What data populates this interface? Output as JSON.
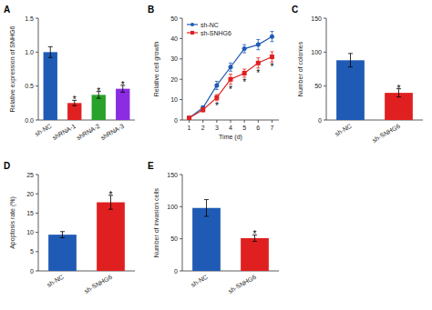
{
  "chart_data": [
    {
      "type": "bar",
      "title": "A",
      "categories": [
        "sh-NC",
        "shRNA-1",
        "shRNA-2",
        "shRNA-3"
      ],
      "values": [
        1.0,
        0.25,
        0.37,
        0.46
      ],
      "errors": [
        0.08,
        0.04,
        0.05,
        0.05
      ],
      "colors": [
        "#1f5bb5",
        "#e02020",
        "#28a228",
        "#8b2be2"
      ],
      "ylabel": "Relative expression of SNHG6",
      "ylim": [
        0,
        1.5
      ],
      "yticks": [
        {
          "value": 0,
          "label": "0.0"
        },
        0.5,
        {
          "value": 1.0,
          "label": "1.0"
        },
        1.5
      ],
      "grid": false,
      "annotations": [
        {
          "text": "*",
          "category": "shRNA-1"
        },
        {
          "text": "*",
          "category": "shRNA-2"
        },
        {
          "text": "*",
          "category": "shRNA-3"
        }
      ]
    },
    {
      "type": "line",
      "title": "B",
      "x": [
        1,
        2,
        3,
        4,
        5,
        6,
        7
      ],
      "series": [
        {
          "name": "sh-NC",
          "color": "#1f5bb5",
          "marker": "circle",
          "values": [
            1,
            6,
            17,
            26,
            35,
            37,
            41
          ],
          "errors": [
            0.3,
            1.0,
            2.0,
            2.0,
            2.0,
            2.5,
            2.5
          ]
        },
        {
          "name": "sh-SNHG6",
          "color": "#e02020",
          "marker": "square",
          "values": [
            1,
            5,
            11,
            20,
            23,
            28,
            31
          ],
          "errors": [
            0.3,
            1.0,
            1.5,
            2.5,
            2.0,
            2.5,
            2.5
          ]
        }
      ],
      "xlabel": "Time (d)",
      "ylabel": "Relative cell growth",
      "xlim": [
        0.5,
        7.5
      ],
      "xticks": [
        1,
        2,
        3,
        4,
        5,
        6,
        7
      ],
      "ylim": [
        0,
        50
      ],
      "yticks": [
        0,
        10,
        20,
        30,
        40,
        50
      ],
      "grid": false,
      "legend": "upper left",
      "annotations": [
        {
          "text": "*",
          "x": 3,
          "series": "sh-SNHG6"
        },
        {
          "text": "*",
          "x": 4,
          "series": "sh-SNHG6"
        },
        {
          "text": "*",
          "x": 5,
          "series": "sh-SNHG6"
        },
        {
          "text": "*",
          "x": 6,
          "series": "sh-SNHG6"
        },
        {
          "text": "*",
          "x": 7,
          "series": "sh-SNHG6"
        }
      ]
    },
    {
      "type": "bar",
      "title": "C",
      "categories": [
        "sh-NC",
        "sh-SNHG6"
      ],
      "values": [
        88,
        40
      ],
      "errors": [
        10,
        6
      ],
      "colors": [
        "#1f5bb5",
        "#e02020"
      ],
      "ylabel": "Number of colonies",
      "ylim": [
        0,
        150
      ],
      "yticks": [
        0,
        50,
        100,
        150
      ],
      "grid": false,
      "annotations": [
        {
          "text": "*",
          "category": "sh-SNHG6"
        }
      ]
    },
    {
      "type": "bar",
      "title": "D",
      "categories": [
        "sh-NC",
        "sh-SNHG6"
      ],
      "values": [
        9.4,
        17.8
      ],
      "errors": [
        0.8,
        1.8
      ],
      "colors": [
        "#1f5bb5",
        "#e02020"
      ],
      "ylabel": "Apoptosis rate (%)",
      "ylim": [
        0,
        25
      ],
      "yticks": [
        0,
        5,
        10,
        15,
        20,
        25
      ],
      "grid": false,
      "annotations": [
        {
          "text": "*",
          "category": "sh-SNHG6"
        }
      ]
    },
    {
      "type": "bar",
      "title": "E",
      "categories": [
        "sh-NC",
        "sh-SNHG6"
      ],
      "values": [
        98,
        51
      ],
      "errors": [
        13,
        5
      ],
      "colors": [
        "#1f5bb5",
        "#e02020"
      ],
      "ylabel": "Number of invasion cells",
      "ylim": [
        0,
        150
      ],
      "yticks": [
        0,
        50,
        100,
        150
      ],
      "grid": false,
      "annotations": [
        {
          "text": "*",
          "category": "sh-SNHG6"
        }
      ]
    }
  ]
}
